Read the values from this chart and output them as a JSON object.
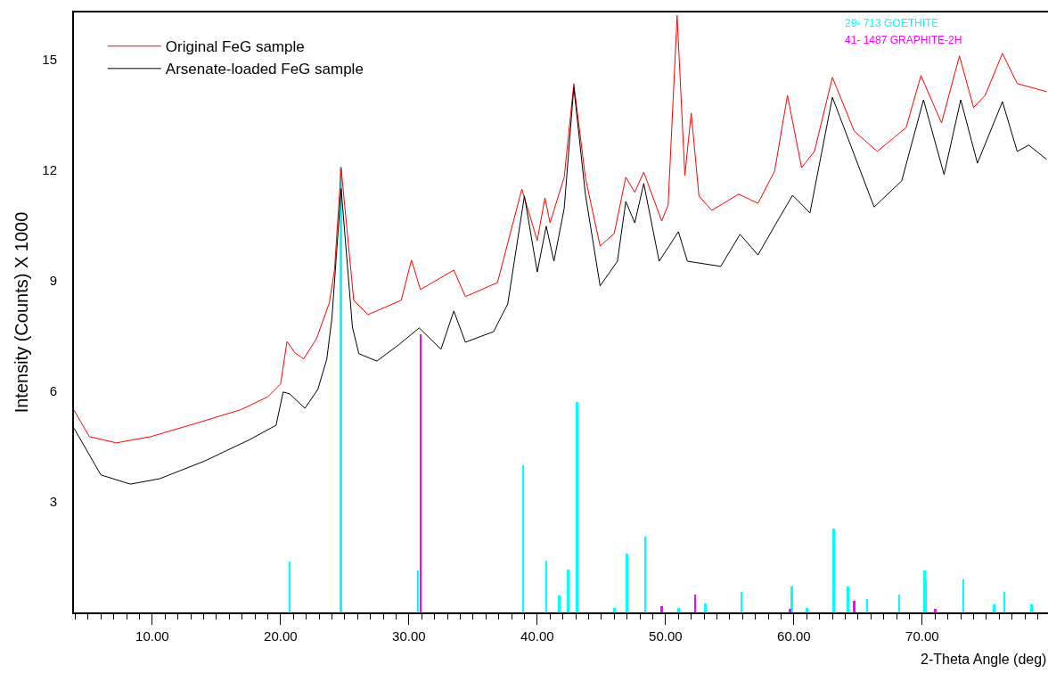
{
  "chart_data": {
    "type": "line",
    "xlabel": "2-Theta Angle (deg)",
    "ylabel": "Intensity (Counts) X 1000",
    "xlim": [
      3.9,
      79.8
    ],
    "ylim": [
      0,
      16.28
    ],
    "xticks": [
      {
        "value": 4,
        "label": null
      },
      {
        "value": 5,
        "label": null
      },
      {
        "value": 6,
        "label": null
      },
      {
        "value": 7,
        "label": null
      },
      {
        "value": 8,
        "label": null
      },
      {
        "value": 9,
        "label": null
      },
      {
        "value": 10,
        "label": "10.00"
      },
      {
        "value": 11,
        "label": null
      },
      {
        "value": 12,
        "label": null
      },
      {
        "value": 13,
        "label": null
      },
      {
        "value": 14,
        "label": null
      },
      {
        "value": 15,
        "label": null
      },
      {
        "value": 16,
        "label": null
      },
      {
        "value": 17,
        "label": null
      },
      {
        "value": 18,
        "label": null
      },
      {
        "value": 19,
        "label": null
      },
      {
        "value": 20,
        "label": "20.00"
      },
      {
        "value": 21,
        "label": null
      },
      {
        "value": 22,
        "label": null
      },
      {
        "value": 23,
        "label": null
      },
      {
        "value": 24,
        "label": null
      },
      {
        "value": 25,
        "label": null
      },
      {
        "value": 26,
        "label": null
      },
      {
        "value": 27,
        "label": null
      },
      {
        "value": 28,
        "label": null
      },
      {
        "value": 29,
        "label": null
      },
      {
        "value": 30,
        "label": "30.00"
      },
      {
        "value": 31,
        "label": null
      },
      {
        "value": 32,
        "label": null
      },
      {
        "value": 33,
        "label": null
      },
      {
        "value": 34,
        "label": null
      },
      {
        "value": 35,
        "label": null
      },
      {
        "value": 36,
        "label": null
      },
      {
        "value": 37,
        "label": null
      },
      {
        "value": 38,
        "label": null
      },
      {
        "value": 39,
        "label": null
      },
      {
        "value": 40,
        "label": "40.00"
      },
      {
        "value": 41,
        "label": null
      },
      {
        "value": 42,
        "label": null
      },
      {
        "value": 43,
        "label": null
      },
      {
        "value": 44,
        "label": null
      },
      {
        "value": 45,
        "label": null
      },
      {
        "value": 46,
        "label": null
      },
      {
        "value": 47,
        "label": null
      },
      {
        "value": 48,
        "label": null
      },
      {
        "value": 49,
        "label": null
      },
      {
        "value": 50,
        "label": "50.00"
      },
      {
        "value": 51,
        "label": null
      },
      {
        "value": 52,
        "label": null
      },
      {
        "value": 53,
        "label": null
      },
      {
        "value": 54,
        "label": null
      },
      {
        "value": 55,
        "label": null
      },
      {
        "value": 56,
        "label": null
      },
      {
        "value": 57,
        "label": null
      },
      {
        "value": 58,
        "label": null
      },
      {
        "value": 59,
        "label": null
      },
      {
        "value": 60,
        "label": "60.00"
      },
      {
        "value": 61,
        "label": null
      },
      {
        "value": 62,
        "label": null
      },
      {
        "value": 63,
        "label": null
      },
      {
        "value": 64,
        "label": null
      },
      {
        "value": 65,
        "label": null
      },
      {
        "value": 66,
        "label": null
      },
      {
        "value": 67,
        "label": null
      },
      {
        "value": 68,
        "label": null
      },
      {
        "value": 69,
        "label": null
      },
      {
        "value": 70,
        "label": "70.00"
      },
      {
        "value": 71,
        "label": null
      },
      {
        "value": 72,
        "label": null
      },
      {
        "value": 73,
        "label": null
      },
      {
        "value": 74,
        "label": null
      },
      {
        "value": 75,
        "label": null
      },
      {
        "value": 76,
        "label": null
      },
      {
        "value": 77,
        "label": null
      },
      {
        "value": 78,
        "label": null
      },
      {
        "value": 79,
        "label": null
      }
    ],
    "yticks": [
      3,
      6,
      9,
      12,
      15
    ],
    "grid": false,
    "legend": "top left",
    "marker": "none",
    "line_style": "solid",
    "series": [
      {
        "name": "Original FeG sample",
        "color": "#ff0000",
        "x": [
          3.9,
          5.1,
          7.2,
          9.9,
          13.4,
          16.9,
          19.0,
          20.0,
          20.5,
          21.1,
          21.8,
          22.8,
          23.8,
          24.2,
          24.72,
          25.7,
          26.8,
          29.4,
          30.2,
          30.9,
          33.5,
          34.4,
          36.9,
          38.8,
          40.0,
          40.6,
          41.0,
          42.1,
          42.85,
          43.75,
          44.9,
          46.0,
          46.9,
          47.6,
          48.3,
          49.7,
          50.2,
          50.9,
          51.5,
          52.0,
          52.6,
          53.6,
          55.7,
          57.2,
          58.5,
          59.5,
          60.6,
          61.6,
          63.0,
          64.7,
          66.5,
          68.75,
          69.9,
          71.5,
          72.9,
          74.0,
          74.9,
          76.25,
          77.4,
          79.7
        ],
        "values": [
          5.49,
          4.77,
          4.6,
          4.77,
          5.13,
          5.5,
          5.85,
          6.2,
          7.35,
          7.05,
          6.88,
          7.43,
          8.4,
          9.3,
          12.05,
          8.47,
          8.08,
          8.47,
          9.56,
          8.76,
          9.29,
          8.57,
          8.95,
          11.49,
          10.09,
          11.25,
          10.57,
          11.81,
          14.35,
          11.8,
          9.94,
          10.28,
          11.81,
          11.4,
          11.95,
          10.62,
          11.06,
          16.2,
          11.86,
          13.55,
          11.3,
          10.91,
          11.35,
          11.1,
          11.98,
          14.03,
          12.07,
          12.51,
          14.52,
          13.06,
          12.51,
          13.16,
          14.57,
          13.28,
          15.1,
          13.7,
          14.03,
          15.17,
          14.35,
          14.13
        ]
      },
      {
        "name": "Arsenate-loaded FeG sample",
        "color": "#000000",
        "x": [
          3.9,
          6.0,
          8.3,
          10.6,
          14.1,
          17.6,
          19.65,
          20.2,
          20.7,
          21.9,
          22.9,
          23.6,
          24.0,
          24.72,
          25.6,
          26.1,
          27.5,
          29.2,
          30.8,
          32.5,
          33.5,
          34.4,
          36.6,
          37.7,
          39.0,
          40.0,
          40.7,
          41.3,
          42.1,
          42.85,
          43.75,
          44.9,
          46.25,
          46.9,
          47.6,
          48.3,
          49.5,
          51.0,
          51.7,
          54.3,
          55.8,
          57.2,
          58.8,
          59.9,
          61.25,
          63.0,
          66.25,
          68.4,
          70.1,
          71.7,
          73.0,
          74.3,
          76.25,
          77.4,
          78.3,
          79.7
        ],
        "values": [
          5.0,
          3.73,
          3.48,
          3.63,
          4.11,
          4.69,
          5.08,
          5.98,
          5.93,
          5.54,
          6.05,
          6.87,
          7.98,
          11.5,
          7.74,
          7.02,
          6.82,
          7.26,
          7.72,
          7.14,
          8.18,
          7.33,
          7.62,
          8.37,
          11.3,
          9.24,
          10.48,
          9.53,
          10.96,
          14.25,
          11.35,
          8.86,
          9.53,
          11.15,
          10.57,
          11.64,
          9.53,
          10.33,
          9.53,
          9.39,
          10.26,
          9.7,
          10.67,
          11.32,
          10.84,
          13.98,
          11.0,
          11.71,
          13.91,
          11.88,
          13.91,
          12.19,
          13.86,
          12.51,
          12.68,
          12.29
        ]
      },
      {
        "name": "29- 713 GOETHITE",
        "type": "bar",
        "color": "#00ffff",
        "x": [
          20.7,
          24.7,
          30.7,
          38.9,
          40.7,
          41.7,
          42.4,
          43.1,
          46.0,
          47.0,
          48.4,
          51.0,
          53.1,
          55.9,
          59.85,
          61.0,
          63.1,
          64.2,
          65.7,
          68.2,
          70.2,
          70.3,
          73.2,
          75.6,
          76.4,
          78.5
        ],
        "values": [
          1.38,
          12.1,
          1.14,
          4.0,
          1.4,
          0.46,
          1.16,
          5.71,
          0.12,
          1.6,
          2.06,
          0.12,
          0.24,
          0.56,
          0.7,
          0.12,
          2.27,
          0.7,
          0.36,
          0.48,
          1.14,
          0.9,
          0.9,
          0.22,
          0.56,
          0.22
        ]
      },
      {
        "name": "41- 1487 GRAPHITE-2H",
        "type": "bar",
        "color": "#ff00ff",
        "x": [
          30.9,
          49.7,
          52.3,
          59.7,
          64.7,
          71.0
        ],
        "values": [
          7.55,
          0.17,
          0.48,
          0.1,
          0.31,
          0.1
        ]
      }
    ]
  }
}
